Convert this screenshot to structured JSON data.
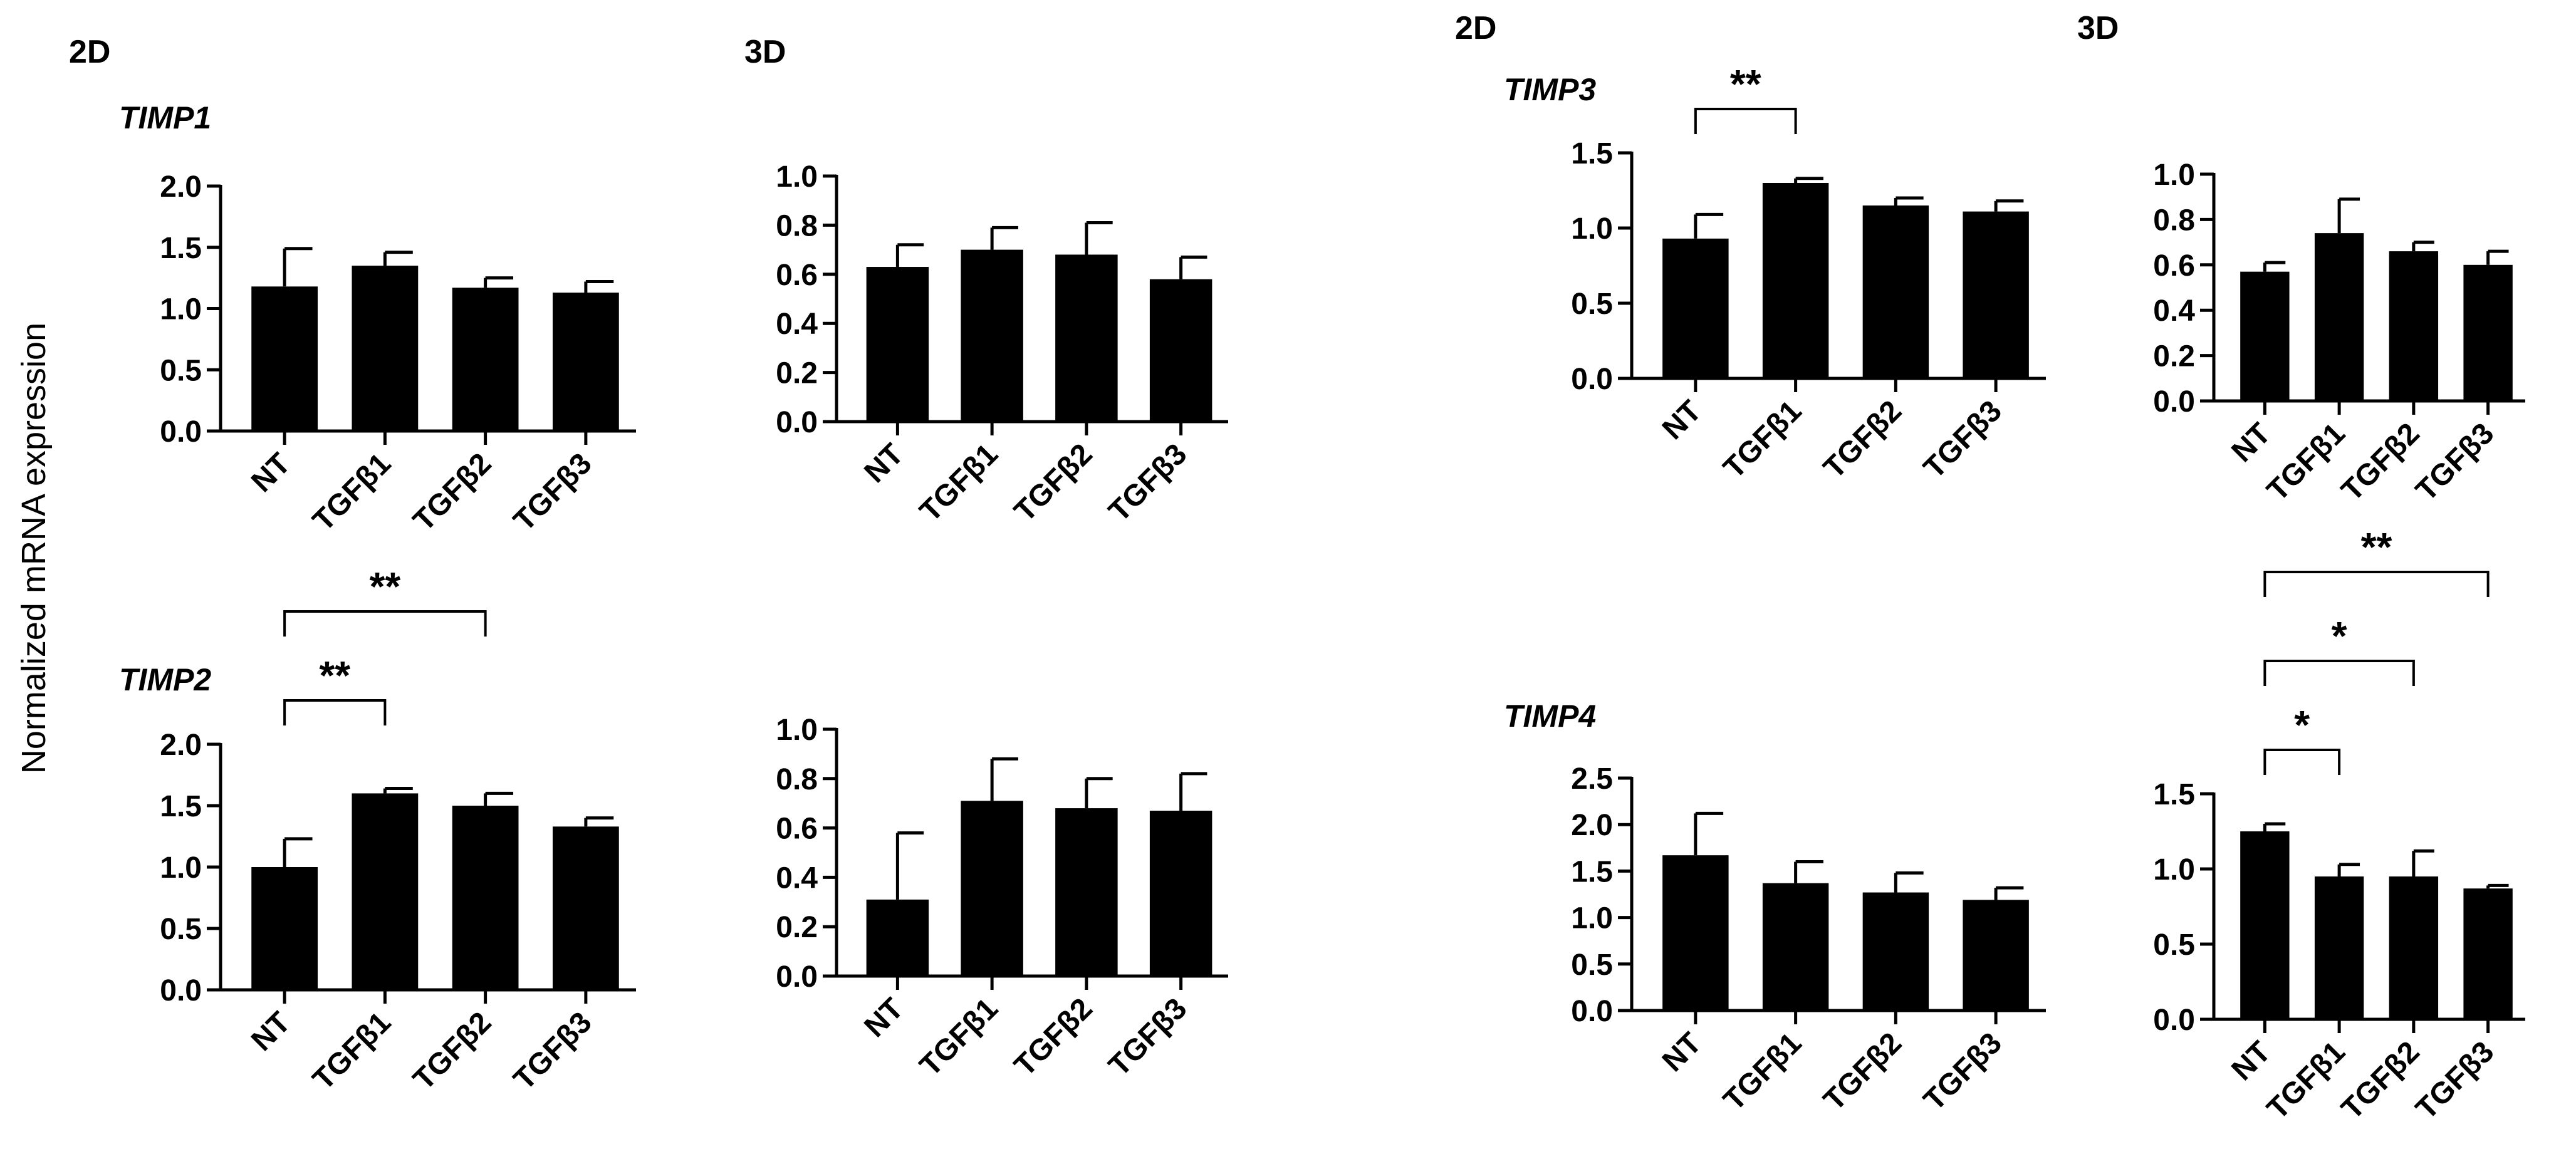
{
  "figure": {
    "y_axis_label": "Normalized mRNA expression",
    "column_labels": [
      "2D",
      "3D",
      "2D",
      "3D"
    ]
  },
  "colors": {
    "bar": "#000000",
    "axis": "#000000",
    "background": "#ffffff"
  },
  "chart_data": [
    {
      "id": "timp1-2d",
      "type": "bar",
      "gene": "TIMP1",
      "condition": "2D",
      "categories": [
        "NT",
        "TGFβ1",
        "TGFβ2",
        "TGFβ3"
      ],
      "values": [
        1.18,
        1.35,
        1.17,
        1.13
      ],
      "errors": [
        0.31,
        0.11,
        0.08,
        0.09
      ],
      "ylim": [
        0,
        2.0
      ],
      "ticks": [
        "0.0",
        "0.5",
        "1.0",
        "1.5",
        "2.0"
      ],
      "significance": []
    },
    {
      "id": "timp1-3d",
      "type": "bar",
      "gene": "",
      "condition": "3D",
      "categories": [
        "NT",
        "TGFβ1",
        "TGFβ2",
        "TGFβ3"
      ],
      "values": [
        0.63,
        0.7,
        0.68,
        0.58
      ],
      "errors": [
        0.09,
        0.09,
        0.13,
        0.09
      ],
      "ylim": [
        0,
        1.0
      ],
      "ticks": [
        "0.0",
        "0.2",
        "0.4",
        "0.6",
        "0.8",
        "1.0"
      ],
      "significance": []
    },
    {
      "id": "timp3-2d",
      "type": "bar",
      "gene": "TIMP3",
      "condition": "2D",
      "categories": [
        "NT",
        "TGFβ1",
        "TGFβ2",
        "TGFβ3"
      ],
      "values": [
        0.93,
        1.3,
        1.15,
        1.11
      ],
      "errors": [
        0.16,
        0.03,
        0.05,
        0.07
      ],
      "ylim": [
        0,
        1.5
      ],
      "ticks": [
        "0.0",
        "0.5",
        "1.0",
        "1.5"
      ],
      "significance": [
        {
          "from": 0,
          "to": 1,
          "label": "**"
        }
      ]
    },
    {
      "id": "timp3-3d",
      "type": "bar",
      "gene": "",
      "condition": "3D",
      "categories": [
        "NT",
        "TGFβ1",
        "TGFβ2",
        "TGFβ3"
      ],
      "values": [
        0.57,
        0.74,
        0.66,
        0.6
      ],
      "errors": [
        0.04,
        0.15,
        0.04,
        0.06
      ],
      "ylim": [
        0,
        1.0
      ],
      "ticks": [
        "0.0",
        "0.2",
        "0.4",
        "0.6",
        "0.8",
        "1.0"
      ],
      "significance": []
    },
    {
      "id": "timp2-2d",
      "type": "bar",
      "gene": "TIMP2",
      "condition": "2D",
      "categories": [
        "NT",
        "TGFβ1",
        "TGFβ2",
        "TGFβ3"
      ],
      "values": [
        1.0,
        1.6,
        1.5,
        1.33
      ],
      "errors": [
        0.23,
        0.04,
        0.1,
        0.07
      ],
      "ylim": [
        0,
        2.0
      ],
      "ticks": [
        "0.0",
        "0.5",
        "1.0",
        "1.5",
        "2.0"
      ],
      "significance": [
        {
          "from": 0,
          "to": 1,
          "label": "**"
        },
        {
          "from": 0,
          "to": 2,
          "label": "**"
        }
      ]
    },
    {
      "id": "timp2-3d",
      "type": "bar",
      "gene": "",
      "condition": "3D",
      "categories": [
        "NT",
        "TGFβ1",
        "TGFβ2",
        "TGFβ3"
      ],
      "values": [
        0.31,
        0.71,
        0.68,
        0.67
      ],
      "errors": [
        0.27,
        0.17,
        0.12,
        0.15
      ],
      "ylim": [
        0,
        1.0
      ],
      "ticks": [
        "0.0",
        "0.2",
        "0.4",
        "0.6",
        "0.8",
        "1.0"
      ],
      "significance": []
    },
    {
      "id": "timp4-2d",
      "type": "bar",
      "gene": "TIMP4",
      "condition": "2D",
      "categories": [
        "NT",
        "TGFβ1",
        "TGFβ2",
        "TGFβ3"
      ],
      "values": [
        1.67,
        1.37,
        1.27,
        1.19
      ],
      "errors": [
        0.45,
        0.23,
        0.21,
        0.13
      ],
      "ylim": [
        0,
        2.5
      ],
      "ticks": [
        "0.0",
        "0.5",
        "1.0",
        "1.5",
        "2.0",
        "2.5"
      ],
      "significance": []
    },
    {
      "id": "timp4-3d",
      "type": "bar",
      "gene": "",
      "condition": "3D",
      "categories": [
        "NT",
        "TGFβ1",
        "TGFβ2",
        "TGFβ3"
      ],
      "values": [
        1.25,
        0.95,
        0.95,
        0.87
      ],
      "errors": [
        0.05,
        0.08,
        0.17,
        0.02
      ],
      "ylim": [
        0,
        1.5
      ],
      "ticks": [
        "0.0",
        "0.5",
        "1.0",
        "1.5"
      ],
      "significance": [
        {
          "from": 0,
          "to": 1,
          "label": "*"
        },
        {
          "from": 0,
          "to": 2,
          "label": "*"
        },
        {
          "from": 0,
          "to": 3,
          "label": "**"
        }
      ]
    }
  ]
}
